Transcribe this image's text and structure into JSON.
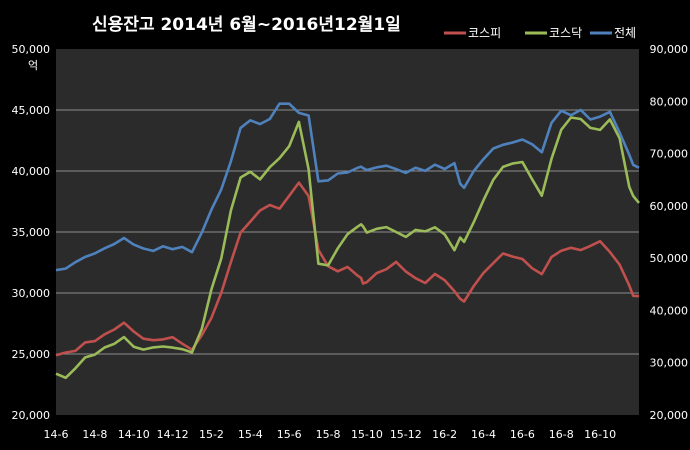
{
  "chart_data": {
    "type": "line",
    "title": "신용잔고  2014년 6월~2016년12월1일",
    "left_axis_unit": "억",
    "y_left": {
      "ylim": [
        20000,
        50000
      ],
      "ticks": [
        "20,000",
        "25,000",
        "30,000",
        "35,000",
        "40,000",
        "45,000",
        "50,000"
      ],
      "tick_values": [
        20000,
        25000,
        30000,
        35000,
        40000,
        45000,
        50000
      ]
    },
    "y_right": {
      "ylim": [
        20000,
        90000
      ],
      "ticks": [
        "20,000",
        "30,000",
        "40,000",
        "50,000",
        "60,000",
        "70,000",
        "80,000",
        "90,000"
      ],
      "tick_values": [
        20000,
        30000,
        40000,
        50000,
        60000,
        70000,
        80000,
        90000
      ]
    },
    "x_ticks": [
      "14-6",
      "14-8",
      "14-10",
      "14-12",
      "15-2",
      "15-4",
      "15-6",
      "15-8",
      "15-10",
      "15-12",
      "16-2",
      "16-4",
      "16-6",
      "16-8",
      "16-10"
    ],
    "x_range": [
      0,
      30
    ],
    "grid": true,
    "legend_position": "top-right",
    "colors": {
      "background": "#000000",
      "plot_background": "#2b2b2b",
      "grid": "#8c8c8c",
      "kospi": "#c0504d",
      "kosdaq": "#9bbb59",
      "total": "#4f81bd"
    },
    "series": [
      {
        "name": "코스피",
        "color": "#c0504d",
        "axis": "left",
        "x": [
          0,
          0.5,
          1,
          1.5,
          2,
          2.5,
          3,
          3.5,
          4,
          4.5,
          5,
          5.5,
          6,
          6.5,
          7,
          7.5,
          8,
          8.5,
          9,
          9.5,
          10,
          10.5,
          11,
          11.5,
          12,
          12.5,
          13,
          13.5,
          14,
          14.5,
          15,
          15.5,
          15.7,
          15.8,
          16,
          16.5,
          17,
          17.5,
          18,
          18.5,
          19,
          19.5,
          20,
          20.5,
          20.8,
          21,
          21.5,
          22,
          22.5,
          23,
          23.5,
          24,
          24.5,
          25,
          25.5,
          26,
          26.5,
          27,
          27.5,
          28,
          28.5,
          29,
          29.5,
          29.7,
          30
        ],
        "values": [
          24900,
          25100,
          25300,
          25900,
          26100,
          26600,
          27000,
          27600,
          26800,
          26300,
          26100,
          26200,
          26400,
          25800,
          25400,
          26500,
          28000,
          30000,
          32500,
          35000,
          35800,
          36800,
          37200,
          36900,
          38000,
          39000,
          38000,
          33500,
          32200,
          31800,
          32100,
          31500,
          31200,
          30800,
          30900,
          31600,
          32000,
          32500,
          31800,
          31200,
          30800,
          31600,
          31000,
          30200,
          29500,
          29300,
          30600,
          31600,
          32500,
          33200,
          33000,
          32800,
          32000,
          31600,
          32900,
          33500,
          33700,
          33500,
          33900,
          34200,
          33400,
          32300,
          30600,
          29800,
          29700
        ]
      },
      {
        "name": "코스닥",
        "color": "#9bbb59",
        "axis": "right",
        "x": [
          0,
          0.5,
          1,
          1.5,
          2,
          2.5,
          3,
          3.5,
          4,
          4.5,
          5,
          5.5,
          6,
          6.5,
          7,
          7.5,
          8,
          8.5,
          9,
          9.5,
          10,
          10.5,
          11,
          11.5,
          12,
          12.5,
          13,
          13.5,
          14,
          14.5,
          15,
          15.5,
          15.7,
          15.8,
          16,
          16.5,
          17,
          17.5,
          18,
          18.5,
          19,
          19.5,
          20,
          20.5,
          20.8,
          21,
          21.5,
          22,
          22.5,
          23,
          23.5,
          24,
          24.5,
          25,
          25.5,
          26,
          26.5,
          27,
          27.5,
          28,
          28.5,
          29,
          29.5,
          29.7,
          30
        ],
        "values": [
          28000,
          27000,
          29000,
          31000,
          31500,
          33000,
          33500,
          35000,
          33000,
          32500,
          33000,
          33000,
          33000,
          32500,
          32000,
          36500,
          44000,
          50000,
          59000,
          65500,
          66500,
          65000,
          67500,
          69000,
          71500,
          76000,
          67000,
          49000,
          48500,
          52000,
          54500,
          56000,
          56500,
          56000,
          55000,
          55500,
          56000,
          55000,
          54000,
          55500,
          55000,
          56000,
          54500,
          51500,
          54000,
          53000,
          57000,
          61000,
          65000,
          67500,
          68000,
          68500,
          65000,
          62000,
          69000,
          74500,
          77000,
          76500,
          75000,
          74500,
          76500,
          73000,
          63500,
          62000,
          60500
        ]
      },
      {
        "name": "전체",
        "color": "#4f81bd",
        "axis": "left",
        "x": [
          0,
          0.5,
          1,
          1.5,
          2,
          2.5,
          3,
          3.5,
          4,
          4.5,
          5,
          5.5,
          6,
          6.5,
          7,
          7.5,
          8,
          8.5,
          9,
          9.5,
          10,
          10.5,
          11,
          11.5,
          12,
          12.5,
          13,
          13.5,
          14,
          14.5,
          15,
          15.5,
          15.7,
          15.8,
          16,
          16.5,
          17,
          17.5,
          18,
          18.5,
          19,
          19.5,
          20,
          20.5,
          20.8,
          21,
          21.5,
          22,
          22.5,
          23,
          23.5,
          24,
          24.5,
          25,
          25.5,
          26,
          26.5,
          27,
          27.5,
          28,
          28.5,
          29,
          29.5,
          29.7,
          30
        ],
        "values": [
          31900,
          32000,
          32500,
          33000,
          33200,
          33700,
          34000,
          34500,
          34000,
          33600,
          33500,
          33800,
          33600,
          33800,
          33300,
          35000,
          36800,
          38500,
          40800,
          43500,
          44200,
          43800,
          44300,
          45500,
          45500,
          44800,
          44500,
          39200,
          39200,
          39800,
          39900,
          40200,
          40400,
          40200,
          40100,
          40300,
          40400,
          40200,
          39800,
          40300,
          40000,
          40500,
          40200,
          40600,
          39000,
          38600,
          40000,
          41000,
          41800,
          42200,
          42300,
          42600,
          42200,
          41500,
          44000,
          44900,
          44600,
          45000,
          44200,
          44500,
          44800,
          43200,
          41300,
          40500,
          40300
        ]
      }
    ]
  }
}
